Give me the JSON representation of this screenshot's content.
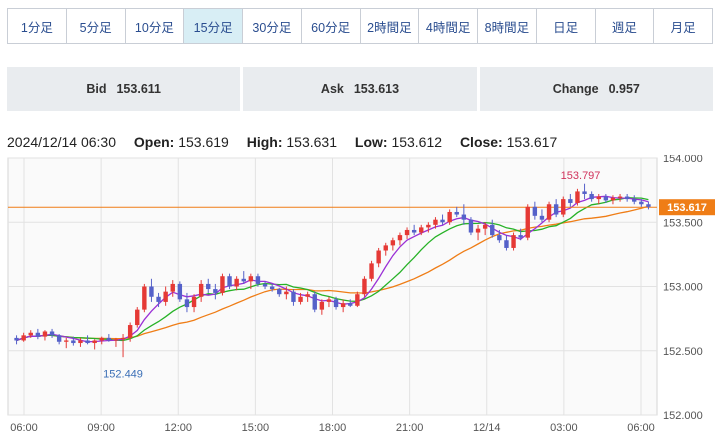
{
  "timeframe_tabs": [
    "1分足",
    "5分足",
    "10分足",
    "15分足",
    "30分足",
    "60分足",
    "2時間足",
    "4時間足",
    "8時間足",
    "日足",
    "週足",
    "月足"
  ],
  "active_tab": "15分足",
  "quote": {
    "bid_label": "Bid",
    "bid_value": "153.611",
    "ask_label": "Ask",
    "ask_value": "153.613",
    "change_label": "Change",
    "change_value": "0.957"
  },
  "ohlc": {
    "datetime": "2024/12/14 06:30",
    "open_label": "Open:",
    "open": "153.619",
    "high_label": "High:",
    "high": "153.631",
    "low_label": "Low:",
    "low": "153.612",
    "close_label": "Close:",
    "close": "153.617"
  },
  "colors": {
    "up": "#e53935",
    "down": "#5561c9",
    "ma_short": "#9b30d6",
    "ma_mid": "#27b227",
    "ma_long": "#ef7d16",
    "price_line": "#ef7d16",
    "high_label": "#d0325b",
    "low_label": "#3b6fb6"
  },
  "chart_data": {
    "type": "candlestick",
    "x_ticks": [
      "06:00",
      "09:00",
      "12:00",
      "15:00",
      "18:00",
      "21:00",
      "12/14",
      "03:00",
      "06:00"
    ],
    "y_ticks": [
      "154.000",
      "153.500",
      "153.000",
      "152.500",
      "152.000"
    ],
    "ylim": [
      152.0,
      154.0
    ],
    "high_marker": "153.797",
    "low_marker": "152.449",
    "current_price": "153.617",
    "grid": true,
    "candles": [
      [
        152.6,
        152.62,
        152.55,
        152.58
      ],
      [
        152.58,
        152.64,
        152.57,
        152.62
      ],
      [
        152.62,
        152.66,
        152.6,
        152.64
      ],
      [
        152.64,
        152.67,
        152.59,
        152.61
      ],
      [
        152.61,
        152.66,
        152.58,
        152.65
      ],
      [
        152.65,
        152.67,
        152.6,
        152.62
      ],
      [
        152.62,
        152.63,
        152.55,
        152.57
      ],
      [
        152.57,
        152.6,
        152.52,
        152.58
      ],
      [
        152.58,
        152.61,
        152.54,
        152.56
      ],
      [
        152.56,
        152.6,
        152.53,
        152.58
      ],
      [
        152.58,
        152.62,
        152.55,
        152.56
      ],
      [
        152.56,
        152.59,
        152.51,
        152.58
      ],
      [
        152.58,
        152.61,
        152.55,
        152.6
      ],
      [
        152.6,
        152.63,
        152.57,
        152.58
      ],
      [
        152.58,
        152.6,
        152.53,
        152.59
      ],
      [
        152.59,
        152.63,
        152.45,
        152.6
      ],
      [
        152.6,
        152.72,
        152.57,
        152.7
      ],
      [
        152.7,
        152.84,
        152.68,
        152.82
      ],
      [
        152.82,
        153.02,
        152.8,
        153.0
      ],
      [
        153.0,
        153.06,
        152.88,
        152.92
      ],
      [
        152.92,
        152.95,
        152.84,
        152.88
      ],
      [
        152.88,
        153.0,
        152.85,
        152.96
      ],
      [
        152.96,
        153.05,
        152.92,
        153.02
      ],
      [
        153.02,
        153.04,
        152.88,
        152.9
      ],
      [
        152.9,
        152.95,
        152.8,
        152.84
      ],
      [
        152.84,
        152.94,
        152.8,
        152.92
      ],
      [
        152.92,
        153.05,
        152.88,
        153.02
      ],
      [
        153.02,
        153.06,
        152.95,
        152.98
      ],
      [
        152.98,
        153.02,
        152.9,
        152.95
      ],
      [
        152.95,
        153.1,
        152.93,
        153.08
      ],
      [
        153.08,
        153.1,
        152.98,
        153.0
      ],
      [
        153.0,
        153.08,
        152.97,
        153.06
      ],
      [
        153.06,
        153.12,
        153.02,
        153.04
      ],
      [
        153.04,
        153.1,
        152.98,
        153.08
      ],
      [
        153.08,
        153.1,
        153.0,
        153.02
      ],
      [
        153.02,
        153.04,
        152.98,
        153.0
      ],
      [
        153.0,
        153.02,
        152.96,
        152.98
      ],
      [
        152.98,
        152.99,
        152.92,
        152.94
      ],
      [
        152.94,
        153.0,
        152.9,
        152.96
      ],
      [
        152.96,
        152.98,
        152.85,
        152.88
      ],
      [
        152.88,
        152.95,
        152.86,
        152.92
      ],
      [
        152.92,
        152.96,
        152.88,
        152.94
      ],
      [
        152.94,
        152.96,
        152.8,
        152.82
      ],
      [
        152.82,
        152.9,
        152.78,
        152.88
      ],
      [
        152.88,
        152.92,
        152.84,
        152.9
      ],
      [
        152.9,
        152.92,
        152.82,
        152.84
      ],
      [
        152.84,
        152.9,
        152.8,
        152.87
      ],
      [
        152.87,
        152.9,
        152.84,
        152.85
      ],
      [
        152.85,
        152.96,
        152.84,
        152.94
      ],
      [
        152.94,
        153.08,
        152.92,
        153.06
      ],
      [
        153.06,
        153.2,
        153.04,
        153.18
      ],
      [
        153.18,
        153.3,
        153.15,
        153.28
      ],
      [
        153.28,
        153.34,
        153.24,
        153.32
      ],
      [
        153.32,
        153.38,
        153.28,
        153.36
      ],
      [
        153.36,
        153.42,
        153.32,
        153.4
      ],
      [
        153.4,
        153.46,
        153.37,
        153.44
      ],
      [
        153.44,
        153.48,
        153.4,
        153.42
      ],
      [
        153.42,
        153.48,
        153.4,
        153.46
      ],
      [
        153.46,
        153.5,
        153.42,
        153.48
      ],
      [
        153.48,
        153.54,
        153.45,
        153.52
      ],
      [
        153.52,
        153.56,
        153.48,
        153.5
      ],
      [
        153.5,
        153.6,
        153.48,
        153.58
      ],
      [
        153.58,
        153.62,
        153.54,
        153.56
      ],
      [
        153.56,
        153.64,
        153.48,
        153.52
      ],
      [
        153.52,
        153.54,
        153.4,
        153.42
      ],
      [
        153.42,
        153.48,
        153.36,
        153.45
      ],
      [
        153.45,
        153.5,
        153.4,
        153.48
      ],
      [
        153.48,
        153.52,
        153.38,
        153.4
      ],
      [
        153.4,
        153.44,
        153.34,
        153.36
      ],
      [
        153.36,
        153.4,
        153.28,
        153.3
      ],
      [
        153.3,
        153.42,
        153.28,
        153.4
      ],
      [
        153.4,
        153.45,
        153.36,
        153.38
      ],
      [
        153.38,
        153.64,
        153.36,
        153.62
      ],
      [
        153.62,
        153.66,
        153.52,
        153.55
      ],
      [
        153.55,
        153.6,
        153.5,
        153.52
      ],
      [
        153.52,
        153.66,
        153.5,
        153.64
      ],
      [
        153.64,
        153.68,
        153.54,
        153.56
      ],
      [
        153.56,
        153.7,
        153.54,
        153.68
      ],
      [
        153.68,
        153.72,
        153.62,
        153.65
      ],
      [
        153.65,
        153.76,
        153.63,
        153.74
      ],
      [
        153.74,
        153.8,
        153.68,
        153.72
      ],
      [
        153.72,
        153.74,
        153.66,
        153.68
      ],
      [
        153.68,
        153.72,
        153.64,
        153.7
      ],
      [
        153.7,
        153.72,
        153.65,
        153.67
      ],
      [
        153.67,
        153.71,
        153.64,
        153.69
      ],
      [
        153.69,
        153.72,
        153.66,
        153.7
      ],
      [
        153.7,
        153.72,
        153.66,
        153.68
      ],
      [
        153.68,
        153.71,
        153.64,
        153.66
      ],
      [
        153.66,
        153.68,
        153.62,
        153.64
      ],
      [
        153.64,
        153.66,
        153.6,
        153.62
      ]
    ]
  }
}
